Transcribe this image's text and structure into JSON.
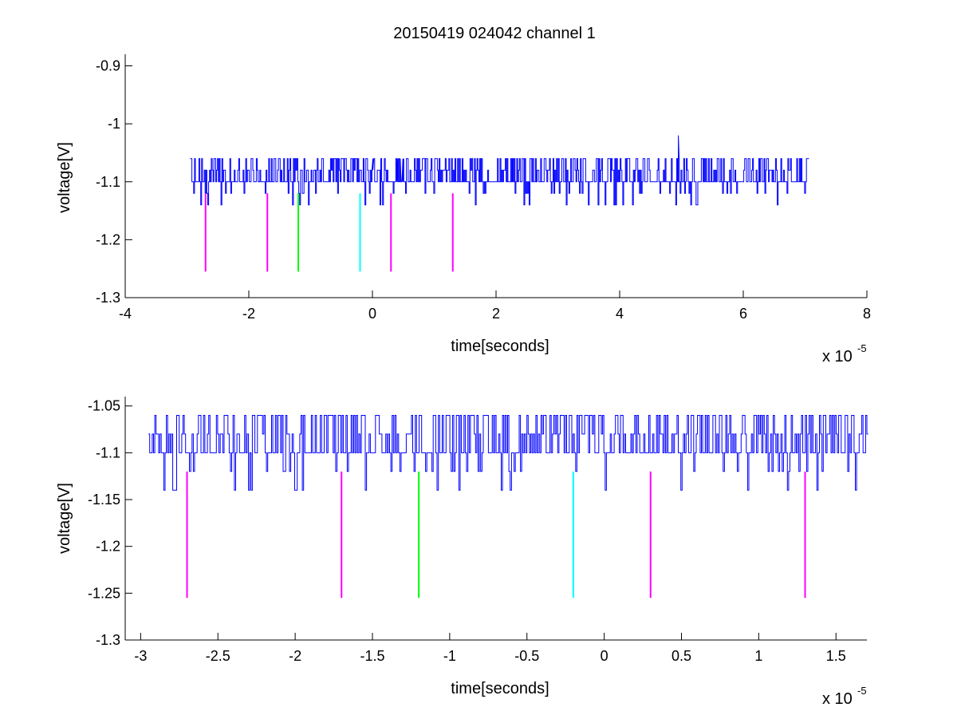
{
  "figure": {
    "title": "20150419 024042 channel 1",
    "background": "#ffffff"
  },
  "colors": {
    "signal": "#0000ff",
    "marker_magenta": "#ff00ff",
    "marker_green": "#00ff00",
    "marker_cyan": "#00ffff",
    "axis": "#000000"
  },
  "chart_data": [
    {
      "type": "line",
      "title": "20150419 024042 channel 1",
      "xlabel": "time[seconds]",
      "ylabel": "voltage[V]",
      "x_multiplier_text": "x 10",
      "x_multiplier_exponent": "-5",
      "x_scale": 1e-05,
      "xlim": [
        -4,
        8
      ],
      "ylim": [
        -1.3,
        -0.88
      ],
      "xticks": [
        -4,
        -2,
        0,
        2,
        4,
        6,
        8
      ],
      "xtick_labels": [
        "-4",
        "-2",
        "0",
        "2",
        "4",
        "6",
        "8"
      ],
      "yticks": [
        -1.3,
        -1.2,
        -1.1,
        -1,
        -0.9
      ],
      "ytick_labels": [
        "-1.3",
        "-1.2",
        "-1.1",
        "-1",
        "-0.9"
      ],
      "grid": false,
      "series": [
        {
          "style": "noisy-digitized-trace",
          "x_range": [
            -2.95,
            7.05
          ],
          "levels": [
            -1.06,
            -1.08,
            -1.1
          ],
          "dips": [
            -1.12,
            -1.14
          ],
          "spike": {
            "x": 4.95,
            "y": -1.02
          },
          "color": "#0000ff"
        }
      ],
      "markers": [
        {
          "x": -2.7,
          "y_range": [
            -1.255,
            -1.12
          ],
          "color": "#ff00ff"
        },
        {
          "x": -1.7,
          "y_range": [
            -1.255,
            -1.12
          ],
          "color": "#ff00ff"
        },
        {
          "x": -1.2,
          "y_range": [
            -1.255,
            -1.12
          ],
          "color": "#00ff00"
        },
        {
          "x": -0.2,
          "y_range": [
            -1.255,
            -1.12
          ],
          "color": "#00ffff"
        },
        {
          "x": 0.3,
          "y_range": [
            -1.255,
            -1.12
          ],
          "color": "#ff00ff"
        },
        {
          "x": 1.3,
          "y_range": [
            -1.255,
            -1.12
          ],
          "color": "#ff00ff"
        }
      ]
    },
    {
      "type": "line",
      "title": "",
      "xlabel": "time[seconds]",
      "ylabel": "voltage[V]",
      "x_multiplier_text": "x 10",
      "x_multiplier_exponent": "-5",
      "x_scale": 1e-05,
      "xlim": [
        -3.1,
        1.7
      ],
      "ylim": [
        -1.3,
        -1.04
      ],
      "xticks": [
        -3,
        -2.5,
        -2,
        -1.5,
        -1,
        -0.5,
        0,
        0.5,
        1,
        1.5
      ],
      "xtick_labels": [
        "-3",
        "-2.5",
        "-2",
        "-1.5",
        "-1",
        "-0.5",
        "0",
        "0.5",
        "1",
        "1.5"
      ],
      "yticks": [
        -1.3,
        -1.25,
        -1.2,
        -1.15,
        -1.1,
        -1.05
      ],
      "ytick_labels": [
        "-1.3",
        "-1.25",
        "-1.2",
        "-1.15",
        "-1.1",
        "-1.05"
      ],
      "grid": false,
      "series": [
        {
          "style": "noisy-digitized-trace",
          "x_range": [
            -2.95,
            1.7
          ],
          "levels": [
            -1.06,
            -1.08,
            -1.1
          ],
          "dips": [
            -1.12,
            -1.14
          ],
          "color": "#0000ff"
        }
      ],
      "markers": [
        {
          "x": -2.7,
          "y_range": [
            -1.255,
            -1.12
          ],
          "color": "#ff00ff"
        },
        {
          "x": -1.7,
          "y_range": [
            -1.255,
            -1.12
          ],
          "color": "#ff00ff"
        },
        {
          "x": -1.2,
          "y_range": [
            -1.255,
            -1.12
          ],
          "color": "#00ff00"
        },
        {
          "x": -0.2,
          "y_range": [
            -1.255,
            -1.12
          ],
          "color": "#00ffff"
        },
        {
          "x": 0.3,
          "y_range": [
            -1.255,
            -1.12
          ],
          "color": "#ff00ff"
        },
        {
          "x": 1.3,
          "y_range": [
            -1.255,
            -1.12
          ],
          "color": "#ff00ff"
        }
      ]
    }
  ]
}
